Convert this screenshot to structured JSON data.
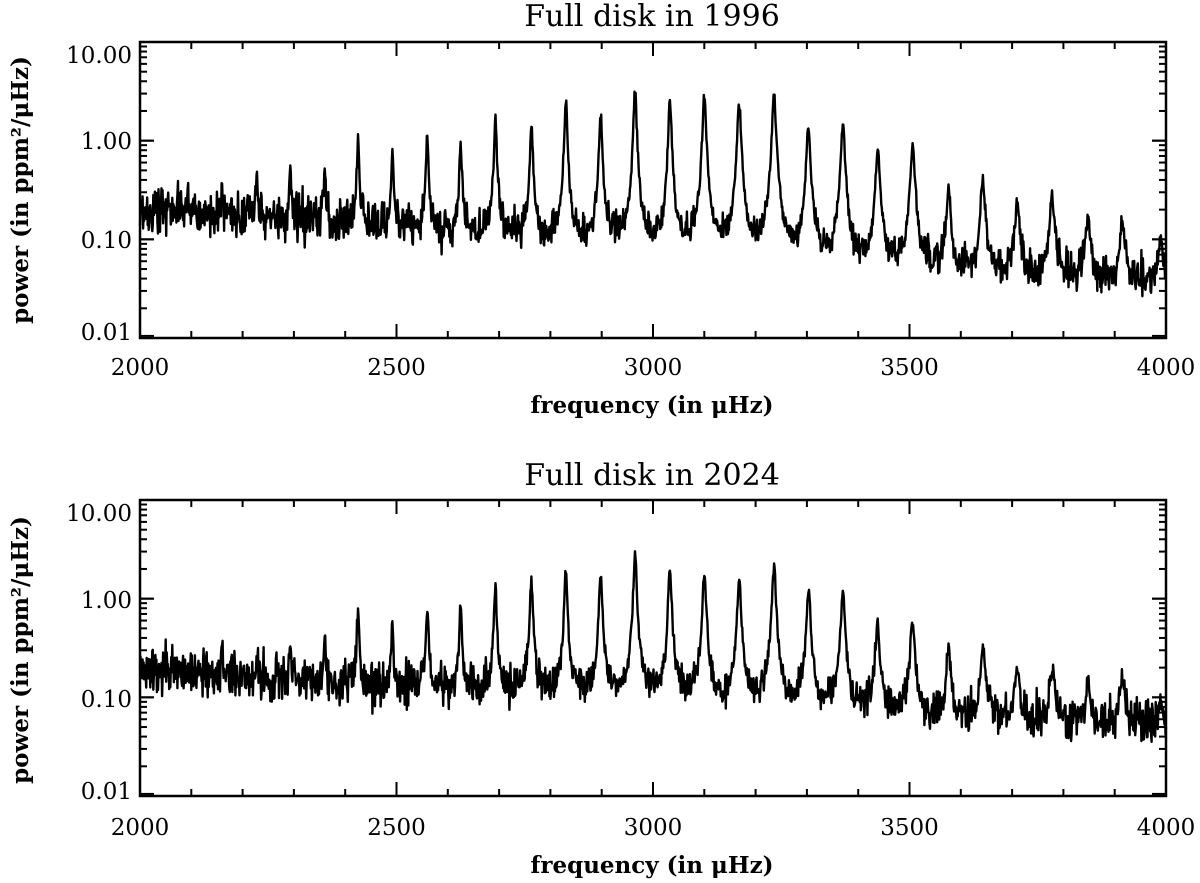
{
  "chart_data": [
    {
      "type": "line",
      "title": "Full disk in 1996",
      "xlabel": "frequency (in μHz)",
      "ylabel": "power (in ppm²/μHz)",
      "xlim": [
        2000,
        4000
      ],
      "ylim": [
        0.01,
        10.0
      ],
      "yscale": "log",
      "xticks": [
        "2000",
        "2500",
        "3000",
        "3500",
        "4000"
      ],
      "yticks": [
        "0.01",
        "0.10",
        "1.00",
        "10.00"
      ],
      "grid": false,
      "color": "#000000",
      "background_trend": [
        [
          2000,
          0.2
        ],
        [
          2300,
          0.16
        ],
        [
          2600,
          0.12
        ],
        [
          3000,
          0.075
        ],
        [
          3400,
          0.05
        ],
        [
          4000,
          0.035
        ]
      ],
      "peaks": [
        [
          2030,
          0.28
        ],
        [
          2093,
          0.35
        ],
        [
          2160,
          0.36
        ],
        [
          2228,
          0.58
        ],
        [
          2293,
          0.62
        ],
        [
          2360,
          0.5
        ],
        [
          2425,
          1.15
        ],
        [
          2492,
          0.8
        ],
        [
          2560,
          1.3
        ],
        [
          2625,
          1.05
        ],
        [
          2693,
          1.9
        ],
        [
          2763,
          1.7
        ],
        [
          2830,
          2.9
        ],
        [
          2898,
          2.1
        ],
        [
          2965,
          3.5
        ],
        [
          3033,
          2.7
        ],
        [
          3100,
          3.2
        ],
        [
          3168,
          2.8
        ],
        [
          3236,
          3.4
        ],
        [
          3303,
          1.6
        ],
        [
          3370,
          1.7
        ],
        [
          3438,
          0.9
        ],
        [
          3506,
          1.0
        ],
        [
          3576,
          0.35
        ],
        [
          3643,
          0.45
        ],
        [
          3710,
          0.25
        ],
        [
          3778,
          0.3
        ],
        [
          3848,
          0.18
        ],
        [
          3915,
          0.17
        ],
        [
          3990,
          0.1
        ]
      ]
    },
    {
      "type": "line",
      "title": "Full disk in 2024",
      "xlabel": "frequency (in μHz)",
      "ylabel": "power (in ppm²/μHz)",
      "xlim": [
        2000,
        4000
      ],
      "ylim": [
        0.01,
        10.0
      ],
      "yscale": "log",
      "xticks": [
        "2000",
        "2500",
        "3000",
        "3500",
        "4000"
      ],
      "yticks": [
        "0.01",
        "0.10",
        "1.00",
        "10.00"
      ],
      "grid": false,
      "color": "#000000",
      "background_trend": [
        [
          2000,
          0.19
        ],
        [
          2300,
          0.15
        ],
        [
          2600,
          0.12
        ],
        [
          3000,
          0.1
        ],
        [
          3400,
          0.07
        ],
        [
          4000,
          0.05
        ]
      ],
      "peaks": [
        [
          2030,
          0.22
        ],
        [
          2093,
          0.25
        ],
        [
          2160,
          0.38
        ],
        [
          2228,
          0.28
        ],
        [
          2293,
          0.4
        ],
        [
          2360,
          0.47
        ],
        [
          2425,
          0.85
        ],
        [
          2492,
          0.58
        ],
        [
          2560,
          0.97
        ],
        [
          2625,
          0.98
        ],
        [
          2693,
          1.45
        ],
        [
          2763,
          1.8
        ],
        [
          2830,
          2.2
        ],
        [
          2898,
          2.0
        ],
        [
          2965,
          3.2
        ],
        [
          3033,
          2.2
        ],
        [
          3100,
          2.1
        ],
        [
          3168,
          1.9
        ],
        [
          3236,
          2.4
        ],
        [
          3303,
          1.4
        ],
        [
          3370,
          1.3
        ],
        [
          3438,
          0.62
        ],
        [
          3506,
          0.68
        ],
        [
          3576,
          0.33
        ],
        [
          3643,
          0.35
        ],
        [
          3710,
          0.22
        ],
        [
          3778,
          0.21
        ],
        [
          3848,
          0.15
        ],
        [
          3915,
          0.18
        ],
        [
          3990,
          0.09
        ]
      ]
    }
  ]
}
